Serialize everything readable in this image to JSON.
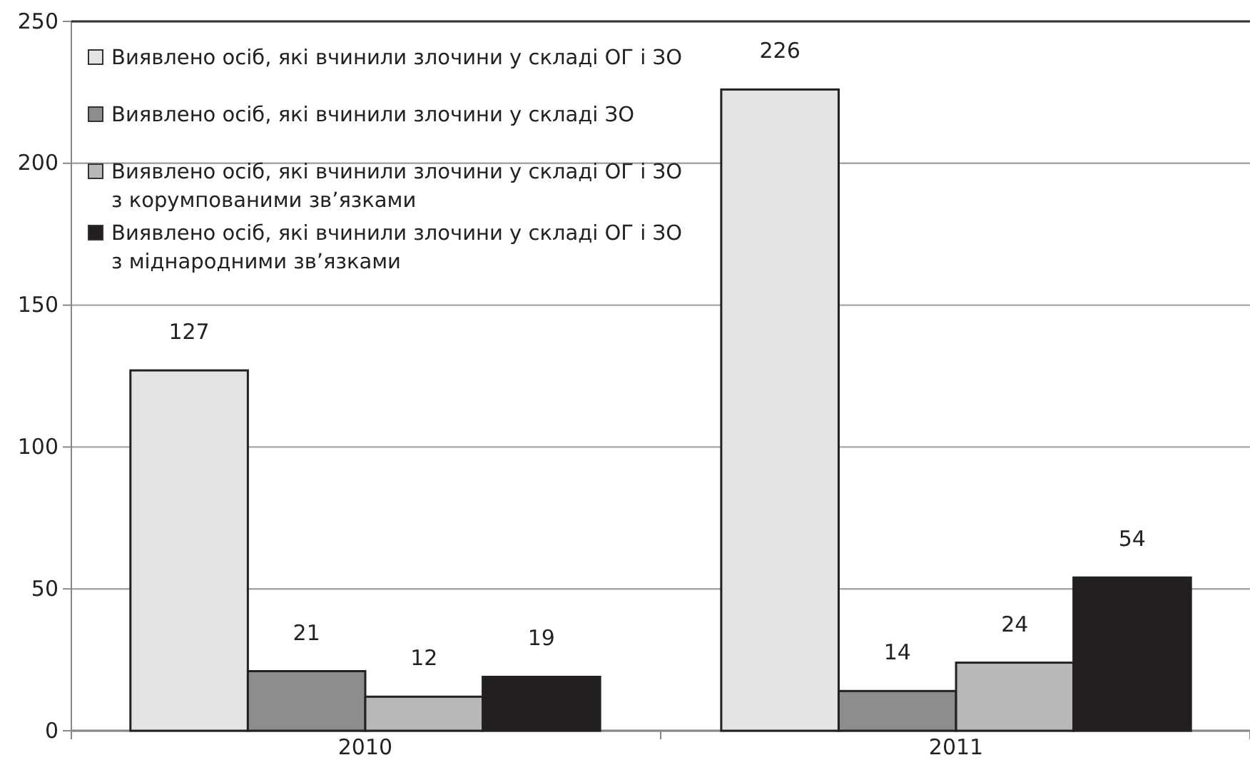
{
  "chart_data": {
    "type": "bar",
    "categories": [
      "2010",
      "2011"
    ],
    "series": [
      {
        "name": "Виявлено осіб, які вчинили злочини у складі ОГ і ЗО",
        "color": "#e3e4e6",
        "values": [
          127,
          226
        ]
      },
      {
        "name": "Виявлено осіб, які вчинили злочини у складі ЗО",
        "color": "#8c8d8f",
        "values": [
          21,
          14
        ]
      },
      {
        "name": "Виявлено осіб, які вчинили злочини у складі ОГ і ЗО\nз корумпованими зв’язками",
        "color": "#b7b8ba",
        "values": [
          12,
          24
        ]
      },
      {
        "name": "Виявлено осіб, які вчинили злочини у складі ОГ і ЗО\nз міднародними зв’язками",
        "color": "#231f20",
        "values": [
          19,
          54
        ]
      }
    ],
    "ylim": [
      0,
      250
    ],
    "yticks": [
      0,
      50,
      100,
      150,
      200,
      250
    ],
    "grid": "y",
    "legend": "top left",
    "data_labels": true
  }
}
